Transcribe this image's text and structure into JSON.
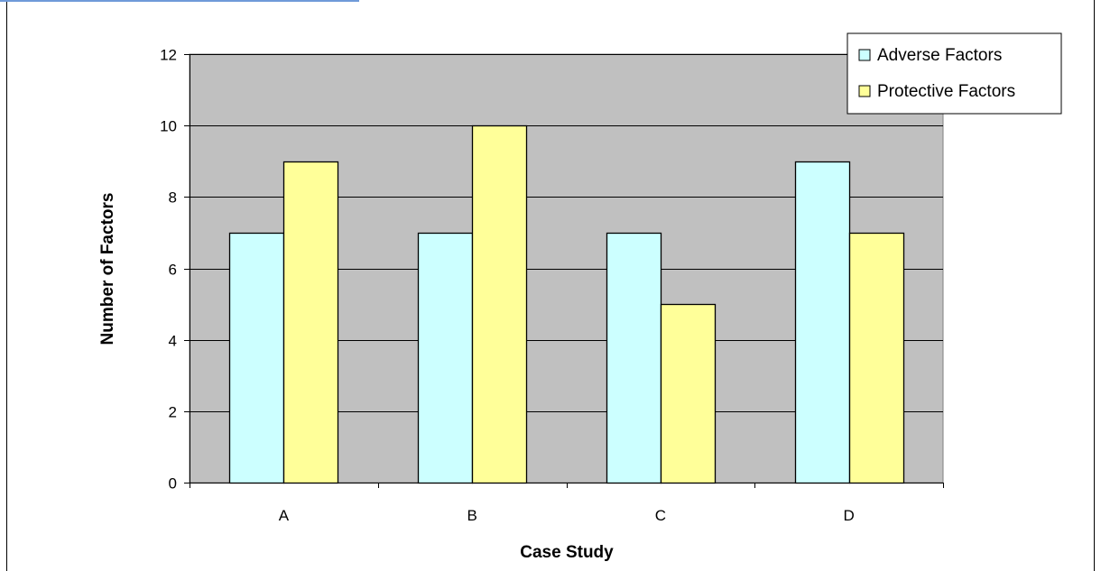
{
  "colors": {
    "plot_background": "#c0c0c0",
    "adverse": "#ccffff",
    "protective": "#ffff99",
    "frame_accent": "#6f9ad9"
  },
  "chart_data": {
    "type": "bar",
    "title": "",
    "xlabel": "Case Study",
    "ylabel": "Number of Factors",
    "categories": [
      "A",
      "B",
      "C",
      "D"
    ],
    "series": [
      {
        "name": "Adverse Factors",
        "values": [
          7,
          7,
          7,
          9
        ],
        "color": "#ccffff"
      },
      {
        "name": "Protective Factors",
        "values": [
          9,
          10,
          5,
          7
        ],
        "color": "#ffff99"
      }
    ],
    "ylim": [
      0,
      12
    ],
    "yticks": [
      0,
      2,
      4,
      6,
      8,
      10,
      12
    ],
    "grid": true,
    "legend_position": "top-right"
  }
}
